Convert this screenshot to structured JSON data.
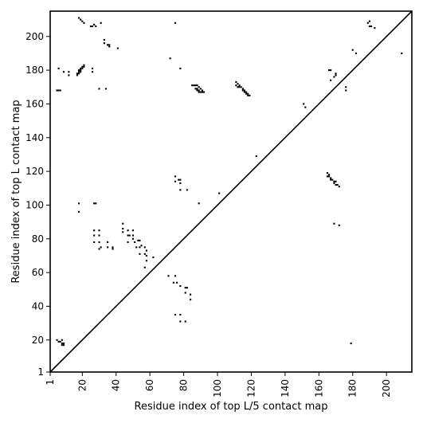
{
  "chart_data": {
    "type": "scatter",
    "title": "",
    "xlabel": "Residue index of top L/5 contact map",
    "ylabel": "Residue index of top L contact map",
    "xlim": [
      1,
      215
    ],
    "ylim": [
      1,
      215
    ],
    "x_ticks": [
      1,
      20,
      40,
      60,
      80,
      100,
      120,
      140,
      160,
      180,
      200
    ],
    "y_ticks": [
      1,
      20,
      40,
      60,
      80,
      100,
      120,
      140,
      160,
      180,
      200
    ],
    "diagonal_line": true,
    "marker": "square",
    "marker_color": "#000000",
    "grid": false,
    "series": [
      {
        "points": [
          [
            5,
            168
          ],
          [
            6,
            168
          ],
          [
            7,
            168
          ],
          [
            6,
            181
          ],
          [
            9,
            179
          ],
          [
            12,
            177
          ],
          [
            12,
            179
          ],
          [
            17,
            177
          ],
          [
            17,
            178
          ],
          [
            18,
            178
          ],
          [
            18,
            179
          ],
          [
            18,
            180
          ],
          [
            19,
            179
          ],
          [
            19,
            180
          ],
          [
            19,
            181
          ],
          [
            20,
            181
          ],
          [
            20,
            182
          ],
          [
            21,
            182
          ],
          [
            21,
            183
          ],
          [
            18,
            211
          ],
          [
            19,
            210
          ],
          [
            20,
            209
          ],
          [
            21,
            208
          ],
          [
            25,
            206
          ],
          [
            26,
            206
          ],
          [
            27,
            207
          ],
          [
            28,
            206
          ],
          [
            31,
            208
          ],
          [
            33,
            198
          ],
          [
            33,
            196
          ],
          [
            35,
            195
          ],
          [
            36,
            195
          ],
          [
            36,
            194
          ],
          [
            41,
            193
          ],
          [
            26,
            181
          ],
          [
            26,
            179
          ],
          [
            30,
            169
          ],
          [
            34,
            169
          ],
          [
            72,
            187
          ],
          [
            75,
            208
          ],
          [
            78,
            181
          ],
          [
            85,
            171
          ],
          [
            86,
            171
          ],
          [
            87,
            171
          ],
          [
            88,
            171
          ],
          [
            87,
            169
          ],
          [
            88,
            169
          ],
          [
            88,
            168
          ],
          [
            89,
            170
          ],
          [
            89,
            168
          ],
          [
            89,
            167
          ],
          [
            90,
            167
          ],
          [
            90,
            169
          ],
          [
            91,
            168
          ],
          [
            91,
            167
          ],
          [
            92,
            167
          ],
          [
            111,
            173
          ],
          [
            111,
            171
          ],
          [
            112,
            172
          ],
          [
            112,
            170
          ],
          [
            113,
            171
          ],
          [
            113,
            170
          ],
          [
            114,
            170
          ],
          [
            115,
            169
          ],
          [
            115,
            168
          ],
          [
            116,
            168
          ],
          [
            116,
            167
          ],
          [
            117,
            166
          ],
          [
            117,
            167
          ],
          [
            118,
            166
          ],
          [
            118,
            165
          ],
          [
            119,
            165
          ],
          [
            151,
            160
          ],
          [
            152,
            158
          ],
          [
            166,
            180
          ],
          [
            167,
            180
          ],
          [
            167,
            174
          ],
          [
            169,
            176
          ],
          [
            170,
            177
          ],
          [
            170,
            178
          ],
          [
            176,
            168
          ],
          [
            176,
            170
          ],
          [
            180,
            192
          ],
          [
            182,
            190
          ],
          [
            189,
            208
          ],
          [
            190,
            209
          ],
          [
            190,
            206
          ],
          [
            191,
            206
          ],
          [
            193,
            205
          ],
          [
            209,
            190
          ],
          [
            5,
            20
          ],
          [
            6,
            19
          ],
          [
            7,
            19
          ],
          [
            8,
            18
          ],
          [
            8,
            17
          ],
          [
            9,
            18
          ],
          [
            9,
            17
          ],
          [
            8,
            20
          ],
          [
            18,
            101
          ],
          [
            18,
            96
          ],
          [
            27,
            101
          ],
          [
            28,
            101
          ],
          [
            27,
            85
          ],
          [
            27,
            82
          ],
          [
            27,
            78
          ],
          [
            30,
            85
          ],
          [
            30,
            82
          ],
          [
            30,
            78
          ],
          [
            30,
            74
          ],
          [
            31,
            75
          ],
          [
            35,
            78
          ],
          [
            35,
            75
          ],
          [
            38,
            75
          ],
          [
            38,
            74
          ],
          [
            44,
            89
          ],
          [
            44,
            86
          ],
          [
            44,
            84
          ],
          [
            47,
            85
          ],
          [
            47,
            82
          ],
          [
            48,
            82
          ],
          [
            47,
            78
          ],
          [
            50,
            85
          ],
          [
            50,
            82
          ],
          [
            50,
            80
          ],
          [
            51,
            78
          ],
          [
            52,
            75
          ],
          [
            53,
            79
          ],
          [
            54,
            79
          ],
          [
            54,
            75
          ],
          [
            54,
            71
          ],
          [
            55,
            76
          ],
          [
            57,
            75
          ],
          [
            57,
            71
          ],
          [
            58,
            73
          ],
          [
            58,
            70
          ],
          [
            58,
            67
          ],
          [
            57,
            63
          ],
          [
            62,
            69
          ],
          [
            71,
            58
          ],
          [
            75,
            58
          ],
          [
            74,
            54
          ],
          [
            76,
            54
          ],
          [
            78,
            52
          ],
          [
            81,
            51
          ],
          [
            82,
            51
          ],
          [
            81,
            48
          ],
          [
            84,
            47
          ],
          [
            84,
            44
          ],
          [
            75,
            35
          ],
          [
            78,
            35
          ],
          [
            78,
            31
          ],
          [
            81,
            31
          ],
          [
            75,
            117
          ],
          [
            75,
            114
          ],
          [
            77,
            115
          ],
          [
            78,
            115
          ],
          [
            78,
            113
          ],
          [
            78,
            109
          ],
          [
            82,
            109
          ],
          [
            89,
            101
          ],
          [
            101,
            107
          ],
          [
            123,
            129
          ],
          [
            165,
            119
          ],
          [
            165,
            117
          ],
          [
            166,
            118
          ],
          [
            166,
            117
          ],
          [
            167,
            116
          ],
          [
            167,
            115
          ],
          [
            168,
            115
          ],
          [
            169,
            114
          ],
          [
            169,
            113
          ],
          [
            170,
            114
          ],
          [
            170,
            112
          ],
          [
            171,
            112
          ],
          [
            172,
            111
          ],
          [
            169,
            89
          ],
          [
            172,
            88
          ],
          [
            179,
            18
          ]
        ]
      }
    ]
  }
}
